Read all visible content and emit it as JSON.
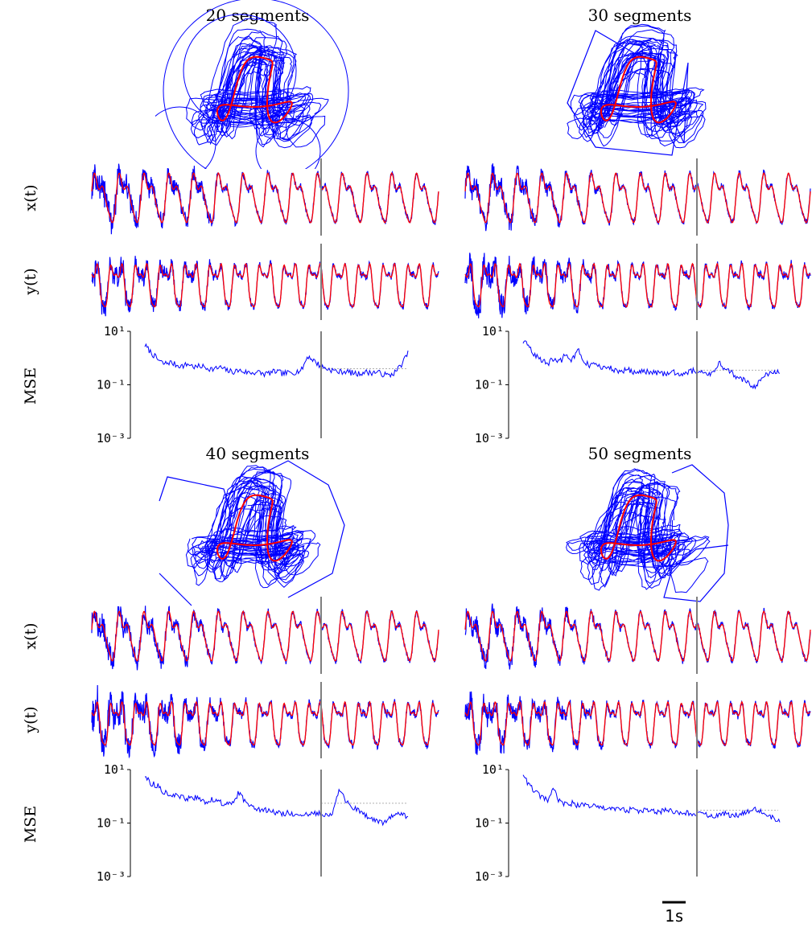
{
  "colors": {
    "target": "#ff0000",
    "prediction": "#0000ff",
    "split_line": "#808080",
    "mse_baseline": "#b0b0b0",
    "axis": "#000000"
  },
  "row_labels": {
    "x": "x(t)",
    "y": "y(t)",
    "mse": "MSE"
  },
  "scale_bar_label": "1s",
  "chart_data": [
    {
      "type": "line",
      "title": "20 segments",
      "mse_yscale": "log",
      "mse_ticks": [
        "10¹",
        "10⁻¹",
        "10⁻³"
      ],
      "mse_ylim": [
        0.001,
        10
      ],
      "split_fraction": 0.66,
      "mse_values": [
        3.0,
        1.6,
        0.9,
        0.6,
        0.7,
        0.55,
        0.5,
        0.6,
        0.45,
        0.5,
        0.42,
        0.38,
        0.45,
        0.35,
        0.3,
        0.35,
        0.3,
        0.28,
        0.3,
        0.25,
        0.28,
        0.32,
        0.26,
        0.28,
        0.3,
        0.35,
        1.2,
        0.8,
        0.5,
        0.4,
        0.35,
        0.3,
        0.32,
        0.28,
        0.25,
        0.3,
        0.28,
        0.3,
        0.25,
        0.22,
        0.3,
        0.6,
        1.5
      ],
      "mse_baseline": 0.4,
      "noise_x": 0.35,
      "noise_y": 0.3,
      "traj_style": "circles"
    },
    {
      "type": "line",
      "title": "30 segments",
      "mse_yscale": "log",
      "mse_ticks": [
        "10¹",
        "10⁻¹",
        "10⁻³"
      ],
      "mse_ylim": [
        0.001,
        10
      ],
      "split_fraction": 0.66,
      "mse_values": [
        4.0,
        3.0,
        1.2,
        0.8,
        0.6,
        1.0,
        0.7,
        1.5,
        0.8,
        2.0,
        0.7,
        0.5,
        0.6,
        0.4,
        0.45,
        0.35,
        0.3,
        0.4,
        0.3,
        0.28,
        0.32,
        0.3,
        0.28,
        0.25,
        0.3,
        0.28,
        0.25,
        0.3,
        0.35,
        0.3,
        0.28,
        0.25,
        0.7,
        0.35,
        0.3,
        0.2,
        0.15,
        0.12,
        0.07,
        0.2,
        0.25,
        0.3,
        0.28
      ],
      "mse_baseline": 0.35,
      "noise_x": 0.3,
      "noise_y": 0.4,
      "traj_style": "polygon"
    },
    {
      "type": "line",
      "title": "40 segments",
      "mse_yscale": "log",
      "mse_ticks": [
        "10¹",
        "10⁻¹",
        "10⁻³"
      ],
      "mse_ylim": [
        0.001,
        10
      ],
      "split_fraction": 0.66,
      "mse_values": [
        6.0,
        3.0,
        2.5,
        1.5,
        1.2,
        1.0,
        0.9,
        0.8,
        0.9,
        0.7,
        0.6,
        0.8,
        0.6,
        0.5,
        0.5,
        1.4,
        0.6,
        0.5,
        0.35,
        0.3,
        0.28,
        0.25,
        0.22,
        0.25,
        0.2,
        0.18,
        0.2,
        0.22,
        0.25,
        0.2,
        0.25,
        1.8,
        0.7,
        0.4,
        0.3,
        0.2,
        0.15,
        0.12,
        0.1,
        0.15,
        0.2,
        0.25,
        0.15
      ],
      "mse_baseline": 0.55,
      "noise_x": 0.3,
      "noise_y": 0.45,
      "traj_style": "loop"
    },
    {
      "type": "line",
      "title": "50 segments",
      "mse_yscale": "log",
      "mse_ticks": [
        "10¹",
        "10⁻¹",
        "10⁻³"
      ],
      "mse_ylim": [
        0.001,
        10
      ],
      "split_fraction": 0.66,
      "mse_values": [
        7.0,
        2.5,
        1.5,
        0.9,
        0.7,
        1.8,
        0.6,
        0.5,
        0.55,
        0.45,
        0.5,
        0.45,
        0.4,
        0.35,
        0.38,
        0.3,
        0.35,
        0.3,
        0.32,
        0.28,
        0.3,
        0.28,
        0.25,
        0.3,
        0.28,
        0.25,
        0.22,
        0.25,
        0.2,
        0.22,
        0.2,
        0.18,
        0.2,
        0.22,
        0.18,
        0.2,
        0.25,
        0.3,
        0.35,
        0.25,
        0.2,
        0.15,
        0.12
      ],
      "mse_baseline": 0.3,
      "noise_x": 0.3,
      "noise_y": 0.35,
      "traj_style": "scribble"
    }
  ]
}
